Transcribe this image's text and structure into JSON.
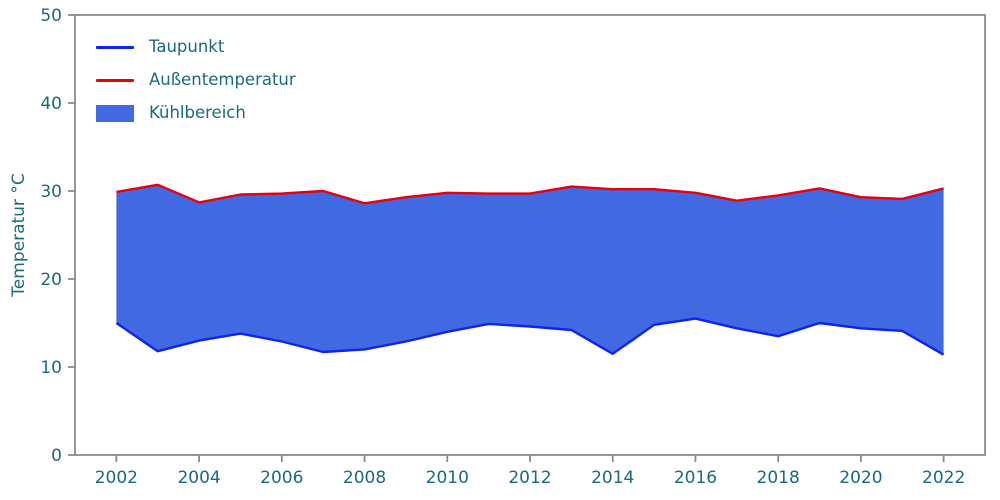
{
  "legend": {
    "items": [
      {
        "label": "Taupunkt",
        "type": "line",
        "color": "#0b24f5"
      },
      {
        "label": "Außentemperatur",
        "type": "line",
        "color": "#e8000b"
      },
      {
        "label": "Kühlbereich",
        "type": "patch",
        "color": "#4169e1"
      }
    ]
  },
  "chart_data": {
    "type": "area",
    "title": "",
    "xlabel": "",
    "ylabel": "Temperatur °C",
    "x": [
      2002,
      2003,
      2004,
      2005,
      2006,
      2007,
      2008,
      2009,
      2010,
      2011,
      2012,
      2013,
      2014,
      2015,
      2016,
      2017,
      2018,
      2019,
      2020,
      2021,
      2022
    ],
    "series": [
      {
        "name": "Taupunkt",
        "role": "lower-bound",
        "color": "#0b24f5",
        "values": [
          15.0,
          11.8,
          13.0,
          13.8,
          12.9,
          11.7,
          12.0,
          12.9,
          14.0,
          14.9,
          14.6,
          14.2,
          11.5,
          14.8,
          15.5,
          14.4,
          13.5,
          15.0,
          14.4,
          14.1,
          11.4
        ]
      },
      {
        "name": "Außentemperatur",
        "role": "upper-bound",
        "color": "#e8000b",
        "values": [
          29.9,
          30.7,
          28.7,
          29.6,
          29.7,
          30.0,
          28.6,
          29.3,
          29.8,
          29.7,
          29.7,
          30.5,
          30.2,
          30.2,
          29.8,
          28.9,
          29.5,
          30.3,
          29.3,
          29.1,
          30.3
        ]
      }
    ],
    "fill": {
      "name": "Kühlbereich",
      "color": "#4169e1"
    },
    "xlim": [
      2001,
      2023
    ],
    "ylim": [
      0,
      50
    ],
    "xticks": [
      2002,
      2004,
      2006,
      2008,
      2010,
      2012,
      2014,
      2016,
      2018,
      2020,
      2022
    ],
    "yticks": [
      0,
      10,
      20,
      30,
      40,
      50
    ],
    "grid": false,
    "legend_position": "upper-left",
    "text_color": "#1a6b7c",
    "axis_color": "#8a8a8a"
  }
}
